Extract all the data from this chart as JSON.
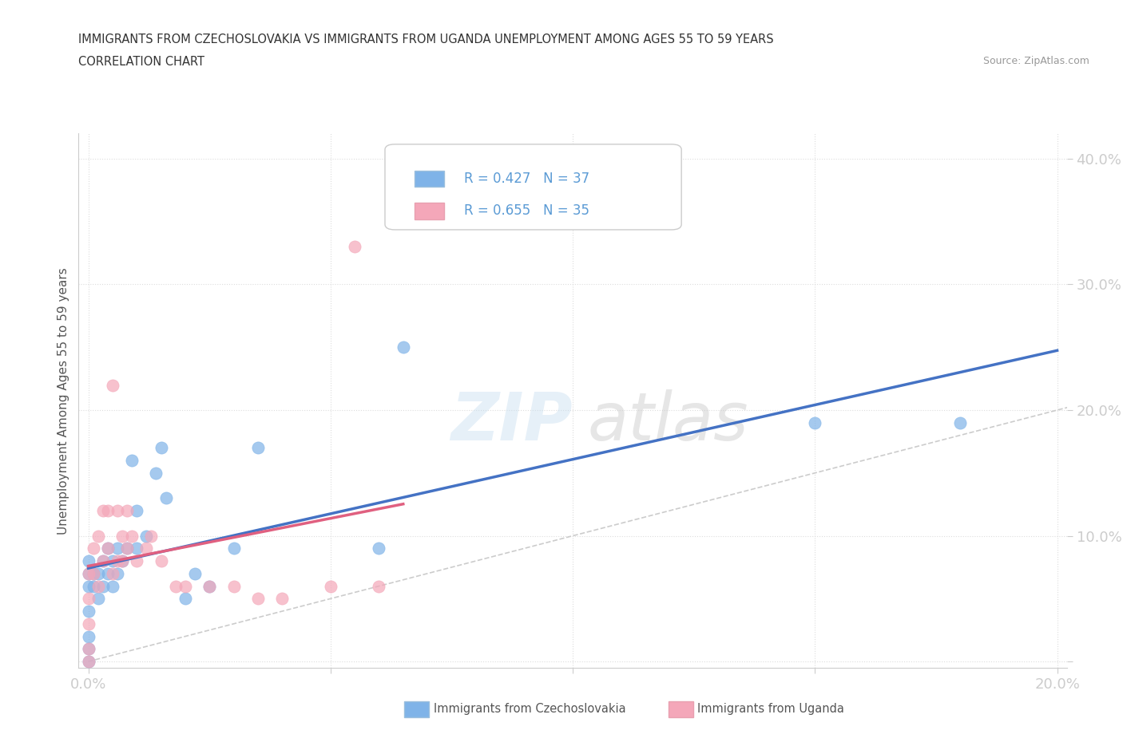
{
  "title_line1": "IMMIGRANTS FROM CZECHOSLOVAKIA VS IMMIGRANTS FROM UGANDA UNEMPLOYMENT AMONG AGES 55 TO 59 YEARS",
  "title_line2": "CORRELATION CHART",
  "source": "Source: ZipAtlas.com",
  "ylabel": "Unemployment Among Ages 55 to 59 years",
  "xlim": [
    -0.002,
    0.202
  ],
  "ylim": [
    -0.005,
    0.42
  ],
  "color_czech": "#7fb3e8",
  "color_uganda": "#f4a7b9",
  "color_line_czech": "#4472c4",
  "color_line_uganda": "#e06080",
  "color_diagonal": "#cccccc",
  "czech_x": [
    0.0,
    0.0,
    0.0,
    0.0,
    0.0,
    0.0,
    0.0,
    0.001,
    0.001,
    0.002,
    0.002,
    0.003,
    0.003,
    0.004,
    0.004,
    0.005,
    0.005,
    0.006,
    0.006,
    0.007,
    0.008,
    0.009,
    0.01,
    0.01,
    0.012,
    0.014,
    0.015,
    0.016,
    0.02,
    0.022,
    0.025,
    0.03,
    0.035,
    0.06,
    0.065,
    0.15,
    0.18
  ],
  "czech_y": [
    0.0,
    0.01,
    0.02,
    0.04,
    0.06,
    0.07,
    0.08,
    0.06,
    0.07,
    0.05,
    0.07,
    0.06,
    0.08,
    0.07,
    0.09,
    0.06,
    0.08,
    0.07,
    0.09,
    0.08,
    0.09,
    0.16,
    0.09,
    0.12,
    0.1,
    0.15,
    0.17,
    0.13,
    0.05,
    0.07,
    0.06,
    0.09,
    0.17,
    0.09,
    0.25,
    0.19,
    0.19
  ],
  "uganda_x": [
    0.0,
    0.0,
    0.0,
    0.0,
    0.0,
    0.001,
    0.001,
    0.002,
    0.002,
    0.003,
    0.003,
    0.004,
    0.004,
    0.005,
    0.005,
    0.006,
    0.006,
    0.007,
    0.007,
    0.008,
    0.008,
    0.009,
    0.01,
    0.012,
    0.013,
    0.015,
    0.018,
    0.02,
    0.025,
    0.03,
    0.035,
    0.04,
    0.05,
    0.055,
    0.06
  ],
  "uganda_y": [
    0.0,
    0.01,
    0.03,
    0.05,
    0.07,
    0.07,
    0.09,
    0.06,
    0.1,
    0.08,
    0.12,
    0.09,
    0.12,
    0.07,
    0.22,
    0.08,
    0.12,
    0.08,
    0.1,
    0.09,
    0.12,
    0.1,
    0.08,
    0.09,
    0.1,
    0.08,
    0.06,
    0.06,
    0.06,
    0.06,
    0.05,
    0.05,
    0.06,
    0.33,
    0.06
  ]
}
